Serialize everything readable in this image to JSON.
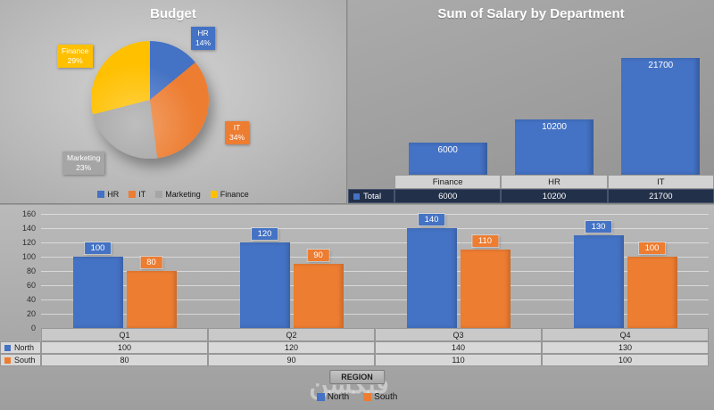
{
  "watermark": "فنكشن",
  "colors": {
    "series_blue": "#4472C4",
    "series_orange": "#ED7D31",
    "series_gray": "#A5A5A5",
    "series_gold": "#FFC000",
    "total_row_bg": "#233049"
  },
  "chart_data": [
    {
      "type": "pie",
      "title": "Budget",
      "labels": [
        "HR",
        "IT",
        "Marketing",
        "Finance"
      ],
      "values": [
        14,
        34,
        23,
        29
      ],
      "unit": "%",
      "colors": [
        "#4472C4",
        "#ED7D31",
        "#A5A5A5",
        "#FFC000"
      ],
      "legend_position": "bottom"
    },
    {
      "type": "bar",
      "title": "Sum of Salary by Department",
      "categories": [
        "Finance",
        "HR",
        "IT"
      ],
      "values": [
        6000,
        10200,
        21700
      ],
      "series_name": "Total",
      "bar_color": "#4472C4",
      "ylim": [
        0,
        21700
      ],
      "data_table": true,
      "legend_position": "none"
    },
    {
      "type": "bar",
      "title": "",
      "categories": [
        "Q1",
        "Q2",
        "Q3",
        "Q4"
      ],
      "series": [
        {
          "name": "North",
          "values": [
            100,
            120,
            140,
            130
          ],
          "color": "#4472C4"
        },
        {
          "name": "South",
          "values": [
            80,
            90,
            110,
            100
          ],
          "color": "#ED7D31"
        }
      ],
      "ylim": [
        0,
        160
      ],
      "ytick_step": 20,
      "grid": true,
      "xlabel": "REGION",
      "data_table": true,
      "legend_position": "bottom"
    }
  ]
}
